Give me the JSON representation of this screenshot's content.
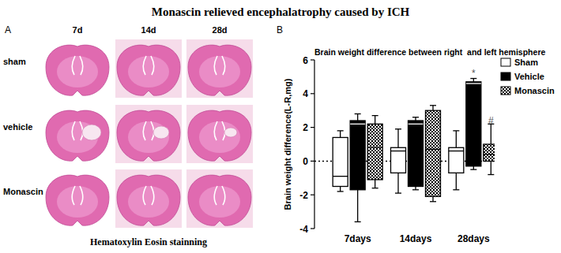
{
  "title": "Monascin relieved encephalatrophy caused by ICH",
  "panel_a": {
    "label": "A",
    "columns": [
      "7d",
      "14d",
      "28d"
    ],
    "rows": [
      "sham",
      "vehicle",
      "Monascin"
    ],
    "caption": "Hematoxylin Eosin stainning"
  },
  "chart_data": {
    "type": "box",
    "label": "B",
    "title": "Brain weight difference between right  and left hemisphere",
    "y_label": "Brain weight difference(L-R,mg)",
    "categories": [
      "7days",
      "14days",
      "28days"
    ],
    "ylim": [
      -4,
      6
    ],
    "yticks": [
      -4,
      -2,
      0,
      2,
      4,
      6
    ],
    "grid": false,
    "legend": "top-right",
    "series": [
      {
        "name": "Sham",
        "color": "#ffffff",
        "marker": "solid",
        "min": [
          -1.8,
          -1.9,
          -1.7
        ],
        "q1": [
          -1.5,
          -0.7,
          -0.7
        ],
        "median": [
          -0.9,
          0.6,
          0.6
        ],
        "q3": [
          1.4,
          0.8,
          0.8
        ],
        "max": [
          1.8,
          1.9,
          1.8
        ]
      },
      {
        "name": "Vehicle",
        "color": "#000000",
        "marker": "solid",
        "min": [
          -3.6,
          -1.7,
          -0.5
        ],
        "q1": [
          -1.7,
          -1.5,
          -0.3
        ],
        "median": [
          2.2,
          2.2,
          4.6
        ],
        "q3": [
          2.4,
          2.4,
          4.7
        ],
        "max": [
          2.8,
          2.6,
          4.9
        ]
      },
      {
        "name": "Monascin",
        "color": "#000000",
        "marker": "checkered",
        "min": [
          -1.6,
          -2.4,
          -0.8
        ],
        "q1": [
          -1.1,
          -2.1,
          0.0
        ],
        "median": [
          0.8,
          0.7,
          0.4
        ],
        "q3": [
          2.2,
          3.0,
          1.0
        ],
        "max": [
          2.7,
          3.3,
          2.2
        ]
      }
    ],
    "annotations": [
      {
        "text": "*",
        "category": "28days",
        "series": "Vehicle",
        "value": 5.3
      },
      {
        "text": "#",
        "category": "28days",
        "series": "Monascin",
        "value": 2.5
      }
    ]
  }
}
